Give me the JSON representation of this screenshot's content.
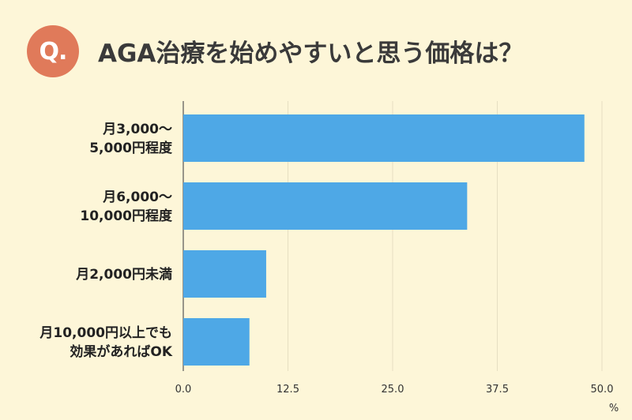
{
  "badge": "Q.",
  "chart_data": {
    "type": "bar",
    "orientation": "horizontal",
    "title": "AGA治療を始めやすいと思う価格は？",
    "categories": [
      [
        "月3,000〜",
        "5,000円程度"
      ],
      [
        "月6,000〜",
        "10,000円程度"
      ],
      [
        "月2,000円未満"
      ],
      [
        "月10,000円以上でも",
        "効果があればOK"
      ]
    ],
    "values": [
      47.9,
      33.9,
      9.9,
      7.9
    ],
    "xlim": [
      0,
      50
    ],
    "xticks": [
      "0.0",
      "12.5",
      "25.0",
      "37.5",
      "50.0"
    ],
    "unit": "%",
    "grid": true,
    "colors": {
      "bar": "#4ea8e6",
      "grid": "#e6dfc2",
      "axis": "#555555",
      "badge": "#e07a5a"
    }
  }
}
